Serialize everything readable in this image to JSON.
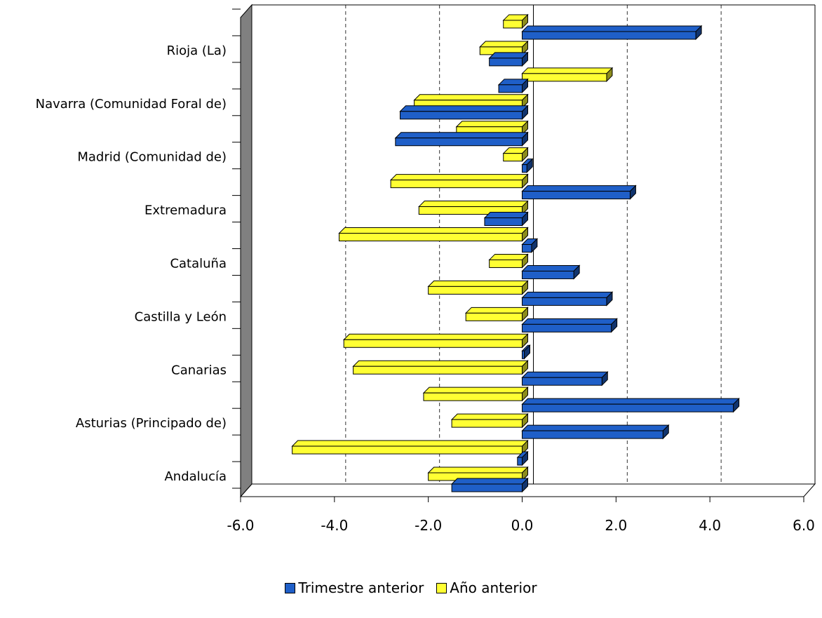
{
  "chart_data": {
    "type": "bar",
    "orientation": "horizontal",
    "three_d": true,
    "grid": "vertical dashed",
    "legend_position": "bottom",
    "xlim": [
      -6.0,
      6.0
    ],
    "x_ticks": [
      "-6.0",
      "-4.0",
      "-2.0",
      "0.0",
      "2.0",
      "4.0",
      "6.0"
    ],
    "categories": [
      "Andalucía",
      "",
      "Asturias (Principado de)",
      "",
      "Canarias",
      "",
      "Castilla y León",
      "",
      "Cataluña",
      "",
      "Extremadura",
      "",
      "Madrid (Comunidad de)",
      "",
      "Navarra (Comunidad Foral de)",
      "",
      "Rioja (La)",
      ""
    ],
    "series": [
      {
        "name": "Trimestre anterior",
        "color": "#1F5FC8",
        "values": [
          -1.5,
          -0.1,
          3.0,
          4.5,
          1.7,
          0.0,
          1.9,
          1.8,
          1.1,
          0.2,
          -0.8,
          2.3,
          0.1,
          -2.7,
          -2.6,
          -0.5,
          -0.7,
          3.7
        ]
      },
      {
        "name": "Año anterior",
        "color": "#FFFF33",
        "values": [
          -2.0,
          -4.9,
          -1.5,
          -2.1,
          -3.6,
          -3.8,
          -1.2,
          -2.0,
          -0.7,
          -3.9,
          -2.2,
          -2.8,
          -0.4,
          -1.4,
          -2.3,
          1.8,
          -0.9,
          -0.4
        ]
      }
    ]
  }
}
